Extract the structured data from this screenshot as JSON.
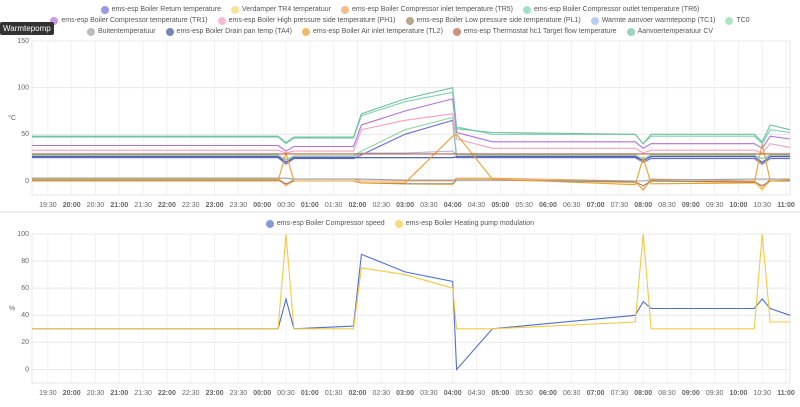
{
  "chart_data": [
    {
      "type": "line",
      "title": "Warmtepomp",
      "y_label": "°C",
      "grid": true,
      "x": [
        "19:10",
        "00:20",
        "00:30",
        "00:40",
        "01:55",
        "02:05",
        "03:00",
        "04:00",
        "04:05",
        "04:50",
        "07:50",
        "08:00",
        "08:10",
        "10:20",
        "10:30",
        "10:40",
        "11:05"
      ],
      "xlim": [
        "19:10",
        "11:05"
      ],
      "xticks": [
        "19:30",
        "20:00",
        "20:30",
        "21:00",
        "21:30",
        "22:00",
        "22:30",
        "23:00",
        "23:30",
        "00:00",
        "00:30",
        "01:00",
        "01:30",
        "02:00",
        "02:30",
        "03:00",
        "03:30",
        "04:00",
        "04:30",
        "05:00",
        "05:30",
        "06:00",
        "06:30",
        "07:00",
        "07:30",
        "08:00",
        "08:30",
        "09:00",
        "09:30",
        "10:00",
        "10:30",
        "11:00"
      ],
      "ylim": [
        -15,
        150
      ],
      "yticks": [
        0,
        50,
        100,
        150
      ],
      "series": [
        {
          "name": "ems-esp Boiler Return temperature",
          "color": "#6b6fd0",
          "values": [
            25,
            25,
            18,
            24,
            24,
            28,
            50,
            65,
            25,
            25,
            25,
            20,
            24,
            24,
            18,
            24,
            24
          ]
        },
        {
          "name": "Verdamper TR4 temperatuur",
          "color": "#f5d76e",
          "values": [
            2,
            2,
            -5,
            0,
            0,
            -2,
            -3,
            -4,
            2,
            2,
            -2,
            -8,
            0,
            -2,
            -10,
            0,
            1
          ]
        },
        {
          "name": "ems-esp Boiler Compressor inlet temperature (TR5)",
          "color": "#f0a060",
          "values": [
            3,
            3,
            -5,
            2,
            2,
            0,
            0,
            0,
            3,
            3,
            0,
            -10,
            2,
            0,
            -8,
            2,
            2
          ]
        },
        {
          "name": "ems-esp Boiler Compressor outlet temperature (TR6)",
          "color": "#7fd1b0",
          "values": [
            47,
            47,
            40,
            46,
            46,
            70,
            85,
            95,
            58,
            50,
            50,
            40,
            48,
            48,
            40,
            55,
            52
          ]
        },
        {
          "name": "ems-esp Boiler Compressor temperature (TR1)",
          "color": "#b070e0",
          "values": [
            38,
            38,
            32,
            37,
            37,
            60,
            75,
            88,
            52,
            42,
            42,
            35,
            40,
            40,
            35,
            48,
            45
          ]
        },
        {
          "name": "ems-esp Boiler High pressure side temperature (PH1)",
          "color": "#f4a0c0",
          "values": [
            33,
            33,
            30,
            32,
            32,
            55,
            65,
            72,
            45,
            35,
            35,
            30,
            33,
            33,
            30,
            40,
            36
          ]
        },
        {
          "name": "ems-esp Boiler Low pressure side temperature (PL1)",
          "color": "#a08060",
          "values": [
            1,
            1,
            -3,
            0,
            0,
            -2,
            -3,
            -3,
            1,
            1,
            -1,
            -5,
            0,
            -1,
            -5,
            0,
            0
          ]
        },
        {
          "name": "Warmte aanvoer warmtepomp (TC1)",
          "color": "#a0b8f0",
          "values": [
            27,
            27,
            22,
            26,
            26,
            30,
            30,
            32,
            28,
            27,
            27,
            24,
            27,
            27,
            24,
            27,
            27
          ]
        },
        {
          "name": "TC0",
          "color": "#90d8a0",
          "values": [
            28,
            28,
            23,
            27,
            27,
            32,
            55,
            68,
            28,
            28,
            28,
            24,
            28,
            28,
            24,
            28,
            28
          ]
        },
        {
          "name": "Buitentemperatuur",
          "color": "#a0a0a0",
          "values": [
            3,
            3,
            3,
            2,
            2,
            2,
            1,
            1,
            1,
            1,
            0,
            0,
            1,
            2,
            2,
            2,
            2
          ]
        },
        {
          "name": "ems-esp Boiler Drain pan temp (TA4)",
          "color": "#4050a0",
          "values": [
            26,
            26,
            20,
            25,
            25,
            25,
            25,
            25,
            26,
            26,
            26,
            22,
            26,
            26,
            20,
            26,
            26
          ]
        },
        {
          "name": "ems-esp Boiler Air inlet temperature (TL2)",
          "color": "#e8a030",
          "values": [
            0,
            0,
            30,
            0,
            0,
            -2,
            -2,
            48,
            50,
            2,
            -4,
            25,
            -3,
            -2,
            40,
            0,
            1
          ]
        },
        {
          "name": "ems-esp Thermostat hc1 Target flow temperature",
          "color": "#c06040",
          "values": [
            29,
            29,
            29,
            29,
            29,
            29,
            29,
            29,
            29,
            29,
            29,
            29,
            29,
            29,
            29,
            29,
            29
          ]
        },
        {
          "name": "Aanvoertemperatuur CV",
          "color": "#70c0a0",
          "values": [
            48,
            48,
            41,
            47,
            47,
            72,
            88,
            100,
            56,
            52,
            50,
            40,
            50,
            50,
            42,
            60,
            55
          ]
        }
      ]
    },
    {
      "type": "line",
      "y_label": "%",
      "grid": true,
      "x": [
        "19:10",
        "00:20",
        "00:30",
        "00:40",
        "01:55",
        "02:05",
        "03:00",
        "04:00",
        "04:05",
        "04:50",
        "07:50",
        "08:00",
        "08:10",
        "10:20",
        "10:30",
        "10:40",
        "11:05"
      ],
      "xlim": [
        "19:10",
        "11:05"
      ],
      "xticks": [
        "19:30",
        "20:00",
        "20:30",
        "21:00",
        "21:30",
        "22:00",
        "22:30",
        "23:00",
        "23:30",
        "00:00",
        "00:30",
        "01:00",
        "01:30",
        "02:00",
        "02:30",
        "03:00",
        "03:30",
        "04:00",
        "04:30",
        "05:00",
        "05:30",
        "06:00",
        "06:30",
        "07:00",
        "07:30",
        "08:00",
        "08:30",
        "09:00",
        "09:30",
        "10:00",
        "10:30",
        "11:00"
      ],
      "ylim": [
        -10,
        100
      ],
      "yticks": [
        0,
        20,
        40,
        60,
        80,
        100
      ],
      "series": [
        {
          "name": "ems-esp Boiler Compressor speed",
          "color": "#5070d0",
          "values": [
            30,
            30,
            52,
            30,
            32,
            85,
            72,
            65,
            0,
            30,
            40,
            50,
            45,
            45,
            52,
            45,
            40
          ]
        },
        {
          "name": "ems-esp Boiler Heating pump modulation",
          "color": "#f5c842",
          "values": [
            30,
            30,
            100,
            30,
            30,
            75,
            70,
            60,
            30,
            30,
            35,
            100,
            30,
            30,
            100,
            35,
            35
          ]
        }
      ]
    }
  ]
}
